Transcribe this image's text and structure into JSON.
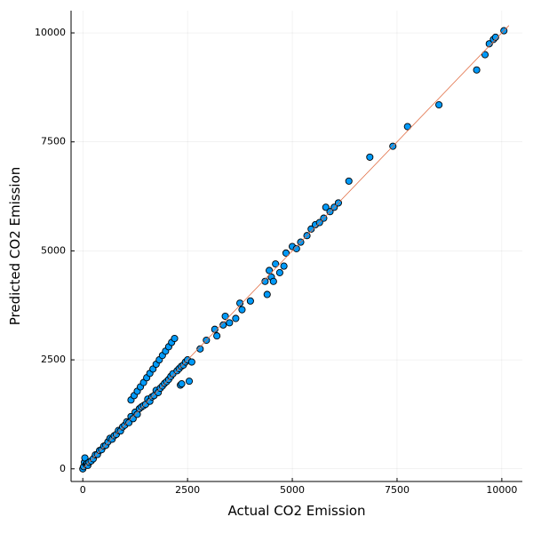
{
  "chart_data": {
    "type": "scatter",
    "xlabel": "Actual CO2 Emission",
    "ylabel": "Predicted CO2 Emission",
    "xlim": [
      -280,
      10490
    ],
    "ylim": [
      -290,
      10510
    ],
    "xticks": [
      0,
      2500,
      5000,
      7500,
      10000
    ],
    "yticks": [
      0,
      2500,
      5000,
      7500,
      10000
    ],
    "grid": true,
    "reference_line": {
      "x": [
        0,
        10170
      ],
      "y": [
        0,
        10170
      ],
      "color": "#e26f46"
    },
    "series": [
      {
        "color": "#009af9",
        "x": [
          0,
          20,
          40,
          50,
          80,
          100,
          120,
          150,
          200,
          250,
          300,
          350,
          400,
          450,
          500,
          550,
          600,
          650,
          700,
          750,
          800,
          850,
          900,
          950,
          1000,
          1050,
          1100,
          1150,
          1200,
          1250,
          1300,
          1350,
          1400,
          1450,
          1500,
          1550,
          1600,
          1650,
          1700,
          1750,
          1800,
          1850,
          1900,
          1950,
          2000,
          2050,
          2100,
          2150,
          2250,
          2300,
          2350,
          2400,
          2450,
          2500,
          1150,
          1225,
          1300,
          1375,
          1450,
          1525,
          1600,
          1675,
          1750,
          1825,
          1900,
          1975,
          2050,
          2120,
          2190,
          2330,
          2360,
          2540,
          2600,
          2800,
          2950,
          3150,
          3200,
          3350,
          3400,
          3500,
          3650,
          3750,
          3800,
          4000,
          4350,
          4400,
          4450,
          4500,
          4550,
          4600,
          4700,
          4800,
          4850,
          5000,
          5100,
          5200,
          5350,
          5450,
          5550,
          5650,
          5750,
          5800,
          5900,
          6000,
          6100,
          6350,
          6850,
          7400,
          7750,
          8500,
          9400,
          9600,
          9700,
          9800,
          9850,
          10050
        ],
        "y": [
          0,
          50,
          150,
          250,
          100,
          120,
          80,
          150,
          180,
          230,
          320,
          330,
          420,
          440,
          520,
          540,
          620,
          700,
          680,
          760,
          790,
          880,
          870,
          960,
          1000,
          1080,
          1060,
          1200,
          1150,
          1300,
          1250,
          1380,
          1420,
          1450,
          1480,
          1600,
          1550,
          1650,
          1680,
          1800,
          1750,
          1850,
          1900,
          1960,
          2000,
          2050,
          2120,
          2180,
          2250,
          2300,
          2350,
          2380,
          2450,
          2500,
          1580,
          1680,
          1780,
          1880,
          1980,
          2090,
          2190,
          2290,
          2400,
          2500,
          2600,
          2700,
          2800,
          2900,
          2990,
          1920,
          1950,
          2010,
          2450,
          2750,
          2950,
          3200,
          3050,
          3300,
          3500,
          3350,
          3450,
          3800,
          3650,
          3850,
          4300,
          4000,
          4550,
          4400,
          4300,
          4700,
          4500,
          4650,
          4950,
          5100,
          5050,
          5200,
          5350,
          5500,
          5600,
          5650,
          5750,
          6000,
          5900,
          6000,
          6100,
          6600,
          7150,
          7400,
          7850,
          8350,
          9150,
          9500,
          9750,
          9850,
          9900,
          10050
        ]
      }
    ]
  }
}
